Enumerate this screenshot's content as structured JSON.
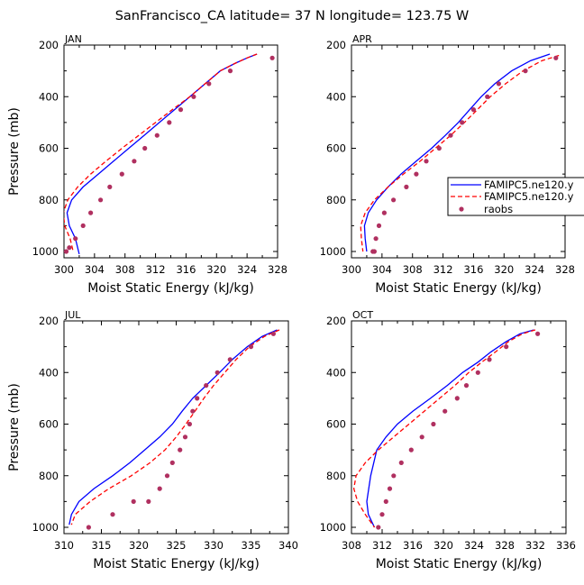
{
  "title": "SanFrancisco_CA  latitude= 37 N longitude= 123.75 W",
  "legend": {
    "entries": [
      {
        "label": "FAMIPC5.ne120.y",
        "style": "solid",
        "color": "#0000ff"
      },
      {
        "label": "FAMIPC5.ne120.y",
        "style": "dashed",
        "color": "#ff0000"
      },
      {
        "label": "raobs",
        "style": "dot",
        "color": "#b03060"
      }
    ]
  },
  "chart_data": [
    {
      "type": "line",
      "panel": "JAN",
      "xlabel": "Moist Static Energy (kJ/kg)",
      "ylabel": "Pressure (mb)",
      "xlim": [
        300,
        328
      ],
      "ylim": [
        1020,
        200
      ],
      "xticks": [
        300,
        304,
        308,
        312,
        316,
        320,
        324,
        328
      ],
      "yticks": [
        200,
        400,
        600,
        800,
        1000
      ],
      "series": [
        {
          "name": "FAMIPC5.ne120.y",
          "style": "solid",
          "color": "#0000ff",
          "x": [
            325.3,
            324.0,
            322.5,
            320.5,
            318.5,
            316.5,
            314.5,
            312.5,
            310.5,
            308.5,
            306.5,
            304.5,
            302.5,
            301.0,
            300.4,
            300.7,
            301.5,
            302.0
          ],
          "y": [
            235,
            250,
            270,
            300,
            350,
            400,
            450,
            500,
            550,
            600,
            650,
            700,
            750,
            800,
            850,
            900,
            950,
            1010
          ]
        },
        {
          "name": "FAMIPC5.ne120.y",
          "style": "dashed",
          "color": "#ff0000",
          "x": [
            325.3,
            324.0,
            322.5,
            320.5,
            318.5,
            316.5,
            314.2,
            312.0,
            309.8,
            307.6,
            305.5,
            303.5,
            301.8,
            300.5,
            299.9,
            300.1,
            300.8,
            301.2
          ],
          "y": [
            235,
            250,
            270,
            300,
            350,
            400,
            450,
            500,
            550,
            600,
            650,
            700,
            750,
            800,
            850,
            900,
            950,
            1000
          ]
        }
      ],
      "points": {
        "name": "raobs",
        "color": "#b03060",
        "x": [
          327.3,
          321.8,
          319.0,
          317.0,
          315.3,
          313.8,
          312.2,
          310.6,
          309.2,
          307.6,
          306.0,
          304.8,
          303.5,
          302.5,
          301.5,
          300.7,
          300.3
        ],
        "y": [
          250,
          300,
          350,
          400,
          450,
          500,
          550,
          600,
          650,
          700,
          750,
          800,
          850,
          900,
          950,
          985,
          1000
        ]
      }
    },
    {
      "type": "line",
      "panel": "APR",
      "xlabel": "Moist Static Energy (kJ/kg)",
      "ylabel": "",
      "xlim": [
        300,
        328
      ],
      "ylim": [
        1020,
        200
      ],
      "xticks": [
        300,
        304,
        308,
        312,
        316,
        320,
        324,
        328
      ],
      "yticks": [
        200,
        400,
        600,
        800,
        1000
      ],
      "series": [
        {
          "name": "FAMIPC5.ne120.y",
          "style": "solid",
          "color": "#0000ff",
          "x": [
            326.0,
            323.5,
            321.0,
            318.8,
            317.0,
            315.5,
            314.0,
            312.3,
            310.5,
            308.5,
            306.5,
            304.8,
            303.3,
            302.2,
            301.7,
            301.8,
            302.0
          ],
          "y": [
            235,
            260,
            300,
            350,
            400,
            450,
            500,
            550,
            600,
            650,
            700,
            750,
            800,
            850,
            900,
            950,
            1000
          ]
        },
        {
          "name": "FAMIPC5.ne120.y",
          "style": "dashed",
          "color": "#ff0000",
          "x": [
            327.2,
            325.0,
            322.5,
            320.2,
            318.2,
            316.5,
            314.8,
            313.0,
            311.0,
            309.0,
            306.8,
            304.8,
            303.0,
            301.8,
            301.2,
            301.3,
            301.5
          ],
          "y": [
            240,
            260,
            300,
            350,
            400,
            450,
            500,
            550,
            600,
            650,
            700,
            750,
            800,
            850,
            900,
            950,
            1000
          ]
        }
      ],
      "points": {
        "name": "raobs",
        "color": "#b03060",
        "x": [
          326.8,
          322.8,
          319.3,
          317.8,
          316.0,
          314.5,
          313.0,
          311.5,
          309.8,
          308.5,
          307.2,
          305.5,
          304.3,
          303.6,
          303.2,
          303.0,
          302.8
        ],
        "y": [
          250,
          300,
          350,
          400,
          450,
          500,
          550,
          600,
          650,
          700,
          750,
          800,
          850,
          900,
          950,
          1000,
          1000
        ]
      }
    },
    {
      "type": "line",
      "panel": "JUL",
      "xlabel": "Moist Static Energy (kJ/kg)",
      "ylabel": "Pressure (mb)",
      "xlim": [
        310,
        340
      ],
      "ylim": [
        1020,
        200
      ],
      "xticks": [
        310,
        315,
        320,
        325,
        330,
        335,
        340
      ],
      "yticks": [
        200,
        400,
        600,
        800,
        1000
      ],
      "series": [
        {
          "name": "FAMIPC5.ne120.y",
          "style": "solid",
          "color": "#0000ff",
          "x": [
            338.5,
            336.5,
            334.5,
            332.5,
            330.8,
            329.0,
            327.2,
            325.8,
            324.5,
            322.8,
            320.8,
            318.8,
            316.5,
            314.0,
            312.0,
            311.0,
            310.7
          ],
          "y": [
            235,
            260,
            300,
            350,
            400,
            450,
            500,
            550,
            600,
            650,
            700,
            750,
            800,
            850,
            900,
            950,
            990
          ]
        },
        {
          "name": "FAMIPC5.ne120.y",
          "style": "dashed",
          "color": "#ff0000",
          "x": [
            338.8,
            336.8,
            334.8,
            333.0,
            331.5,
            330.0,
            328.7,
            327.5,
            326.3,
            325.0,
            323.5,
            321.5,
            319.0,
            316.0,
            313.5,
            311.5,
            311.0
          ],
          "y": [
            235,
            260,
            300,
            350,
            400,
            450,
            500,
            550,
            600,
            650,
            700,
            750,
            800,
            850,
            900,
            950,
            990
          ]
        }
      ],
      "points": {
        "name": "raobs",
        "color": "#b03060",
        "x": [
          338.0,
          335.0,
          332.2,
          330.5,
          329.0,
          327.8,
          327.2,
          326.8,
          326.2,
          325.5,
          324.5,
          323.8,
          322.8,
          321.3,
          319.3,
          316.5,
          313.3
        ],
        "y": [
          250,
          300,
          350,
          400,
          450,
          500,
          550,
          600,
          650,
          700,
          750,
          800,
          850,
          900,
          900,
          950,
          1000
        ]
      }
    },
    {
      "type": "line",
      "panel": "OCT",
      "xlabel": "Moist Static Energy (kJ/kg)",
      "ylabel": "",
      "xlim": [
        308,
        336
      ],
      "ylim": [
        1020,
        200
      ],
      "xticks": [
        308,
        312,
        316,
        320,
        324,
        328,
        332,
        336
      ],
      "yticks": [
        200,
        400,
        600,
        800,
        1000
      ],
      "series": [
        {
          "name": "FAMIPC5.ne120.y",
          "style": "solid",
          "color": "#0000ff",
          "x": [
            331.8,
            330.0,
            328.2,
            326.2,
            324.5,
            322.5,
            320.5,
            318.3,
            316.0,
            314.0,
            312.5,
            311.3,
            310.5,
            310.0,
            310.2,
            311.0
          ],
          "y": [
            235,
            250,
            280,
            320,
            360,
            400,
            450,
            500,
            550,
            600,
            650,
            700,
            800,
            900,
            950,
            1000
          ]
        },
        {
          "name": "FAMIPC5.ne120.y",
          "style": "dashed",
          "color": "#ff0000",
          "x": [
            332.0,
            330.3,
            328.5,
            326.8,
            325.0,
            323.3,
            321.5,
            319.5,
            317.5,
            315.5,
            313.5,
            311.5,
            309.8,
            308.6,
            308.3,
            308.8,
            309.8,
            311.0
          ],
          "y": [
            235,
            250,
            280,
            320,
            360,
            400,
            450,
            500,
            550,
            600,
            650,
            700,
            750,
            800,
            850,
            900,
            950,
            1000
          ]
        }
      ],
      "points": {
        "name": "raobs",
        "color": "#b03060",
        "x": [
          332.3,
          328.2,
          326.0,
          324.5,
          323.0,
          321.8,
          320.2,
          318.7,
          317.2,
          315.8,
          314.5,
          313.5,
          313.0,
          312.5,
          312.0,
          311.5
        ],
        "y": [
          250,
          300,
          350,
          400,
          450,
          500,
          550,
          600,
          650,
          700,
          750,
          800,
          850,
          900,
          950,
          1000
        ]
      }
    }
  ]
}
